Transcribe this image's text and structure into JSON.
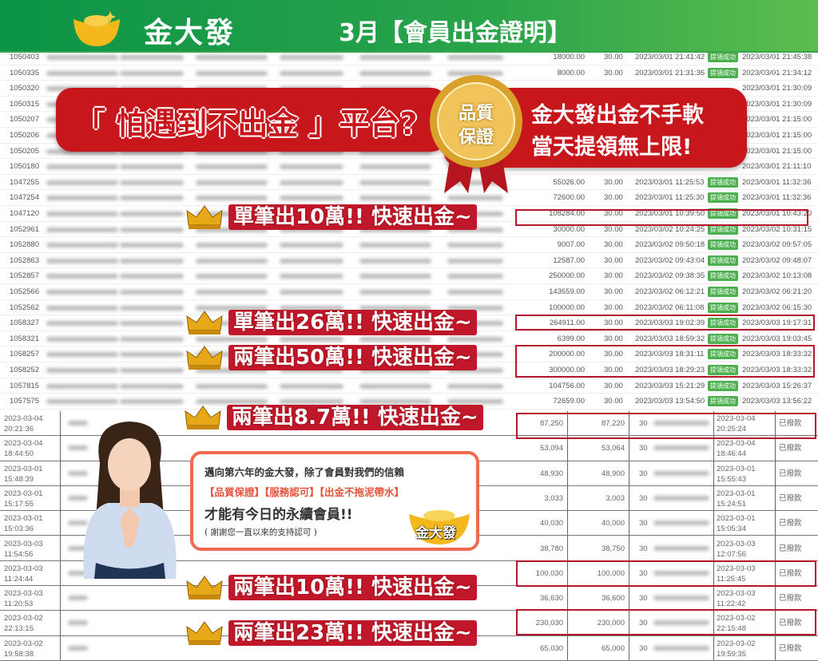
{
  "header": {
    "brand": "金大發",
    "title": "3月【會員出金證明】"
  },
  "top_table": {
    "status_label": "提領成功",
    "rows": [
      {
        "id": "1050403",
        "amount": "18000.00",
        "fee": "30.00",
        "request_time": "2023/03/01 21:41:42",
        "done_time": "2023/03/01 21:45:38"
      },
      {
        "id": "1050335",
        "amount": "8000.00",
        "fee": "30.00",
        "request_time": "2023/03/01 21:31:36",
        "done_time": "2023/03/01 21:34:12"
      },
      {
        "id": "1050320",
        "amount": "",
        "fee": "",
        "request_time": "",
        "done_time": "2023/03/01 21:30:09"
      },
      {
        "id": "1050315",
        "amount": "",
        "fee": "",
        "request_time": "",
        "done_time": "2023/03/01 21:30:09"
      },
      {
        "id": "1050207",
        "amount": "",
        "fee": "",
        "request_time": "",
        "done_time": "2023/03/01 21:15:00"
      },
      {
        "id": "1050206",
        "amount": "",
        "fee": "",
        "request_time": "",
        "done_time": "2023/03/01 21:15:00"
      },
      {
        "id": "1050205",
        "amount": "",
        "fee": "",
        "request_time": "",
        "done_time": "2023/03/01 21:15:00"
      },
      {
        "id": "1050180",
        "amount": "",
        "fee": "",
        "request_time": "",
        "done_time": "2023/03/01 21:11:10"
      },
      {
        "id": "1047255",
        "amount": "55026.00",
        "fee": "30.00",
        "request_time": "2023/03/01 11:25:53",
        "done_time": "2023/03/01 11:32:36"
      },
      {
        "id": "1047254",
        "amount": "72600.00",
        "fee": "30.00",
        "request_time": "2023/03/01 11:25:30",
        "done_time": "2023/03/01 11:32:36"
      },
      {
        "id": "1047120",
        "amount": "108284.00",
        "fee": "30.00",
        "request_time": "2023/03/01 10:39:50",
        "done_time": "2023/03/01 10:43:20"
      },
      {
        "id": "1052961",
        "amount": "30000.00",
        "fee": "30.00",
        "request_time": "2023/03/02 10:24:25",
        "done_time": "2023/03/02 10:31:15"
      },
      {
        "id": "1052880",
        "amount": "9007.00",
        "fee": "30.00",
        "request_time": "2023/03/02 09:50:18",
        "done_time": "2023/03/02 09:57:05"
      },
      {
        "id": "1052863",
        "amount": "12587.00",
        "fee": "30.00",
        "request_time": "2023/03/02 09:43:04",
        "done_time": "2023/03/02 09:48:07"
      },
      {
        "id": "1052857",
        "amount": "250000.00",
        "fee": "30.00",
        "request_time": "2023/03/02 09:38:35",
        "done_time": "2023/03/02 10:13:08"
      },
      {
        "id": "1052566",
        "amount": "143659.00",
        "fee": "30.00",
        "request_time": "2023/03/02 06:12:21",
        "done_time": "2023/03/02 06:21:20"
      },
      {
        "id": "1052562",
        "amount": "100000.00",
        "fee": "30.00",
        "request_time": "2023/03/02 06:11:08",
        "done_time": "2023/03/02 06:15:30"
      },
      {
        "id": "1058327",
        "amount": "264911.00",
        "fee": "30.00",
        "request_time": "2023/03/03 19:02:39",
        "done_time": "2023/03/03 19:17:31"
      },
      {
        "id": "1058321",
        "amount": "6399.00",
        "fee": "30.00",
        "request_time": "2023/03/03 18:59:32",
        "done_time": "2023/03/03 19:03:45"
      },
      {
        "id": "1058257",
        "amount": "200000.00",
        "fee": "30.00",
        "request_time": "2023/03/03 18:31:11",
        "done_time": "2023/03/03 18:33:32"
      },
      {
        "id": "1058252",
        "amount": "300000.00",
        "fee": "30.00",
        "request_time": "2023/03/03 18:29:23",
        "done_time": "2023/03/03 18:33:32"
      },
      {
        "id": "1057815",
        "amount": "104756.00",
        "fee": "30.00",
        "request_time": "2023/03/03 15:21:29",
        "done_time": "2023/03/03 15:26:37"
      },
      {
        "id": "1057575",
        "amount": "72659.00",
        "fee": "30.00",
        "request_time": "2023/03/03 13:54:50",
        "done_time": "2023/03/03 13:56:22"
      }
    ]
  },
  "bottom_table": {
    "status_label": "已撥款",
    "rows": [
      {
        "date": "2023-03-04",
        "time": "20:21:36",
        "amount": "87,250",
        "net": "87,220",
        "fee": "30",
        "done_date": "2023-03-04",
        "done_time": "20:25:24"
      },
      {
        "date": "2023-03-04",
        "time": "18:44:50",
        "amount": "53,094",
        "net": "53,064",
        "fee": "30",
        "done_date": "2023-03-04",
        "done_time": "18:46:44"
      },
      {
        "date": "2023-03-01",
        "time": "15:48:39",
        "amount": "48,930",
        "net": "48,900",
        "fee": "30",
        "done_date": "2023-03-01",
        "done_time": "15:55:43"
      },
      {
        "date": "2023-03-01",
        "time": "15:17:55",
        "amount": "3,033",
        "net": "3,003",
        "fee": "30",
        "done_date": "2023-03-01",
        "done_time": "15:24:51"
      },
      {
        "date": "2023-03-01",
        "time": "15:03:36",
        "amount": "40,030",
        "net": "40,000",
        "fee": "30",
        "done_date": "2023-03-01",
        "done_time": "15:05:34"
      },
      {
        "date": "2023-03-03",
        "time": "11:54:56",
        "amount": "38,780",
        "net": "38,750",
        "fee": "30",
        "done_date": "2023-03-03",
        "done_time": "12:07:56"
      },
      {
        "date": "2023-03-03",
        "time": "11:24:44",
        "amount": "100,030",
        "net": "100,000",
        "fee": "30",
        "done_date": "2023-03-03",
        "done_time": "11:25:45"
      },
      {
        "date": "2023-03-03",
        "time": "11:20:53",
        "amount": "36,630",
        "net": "36,600",
        "fee": "30",
        "done_date": "2023-03-03",
        "done_time": "11:22:42"
      },
      {
        "date": "2023-03-02",
        "time": "22:13:15",
        "amount": "230,030",
        "net": "230,000",
        "fee": "30",
        "done_date": "2023-03-02",
        "done_time": "22:15:48"
      },
      {
        "date": "2023-03-02",
        "time": "19:58:38",
        "amount": "65,030",
        "net": "65,000",
        "fee": "30",
        "done_date": "2023-03-02",
        "done_time": "19:59:35"
      }
    ]
  },
  "banner_left": "「 怕遇到不出金 」平台?",
  "seal": {
    "line1": "品質",
    "line2": "保證"
  },
  "banner_right": {
    "line1": "金大發出金不手軟",
    "line2": "當天提領無上限!"
  },
  "callouts": [
    "單筆出10萬!! 快速出金~",
    "單筆出26萬!! 快速出金~",
    "兩筆出50萬!! 快速出金~",
    "兩筆出8.7萬!! 快速出金~",
    "兩筆出10萬!! 快速出金~",
    "兩筆出23萬!! 快速出金~"
  ],
  "bubble": {
    "line1": "邁向第六年的金大發，除了會員對我們的信賴",
    "line2": "【品質保證】【服務認可】【出金不拖泥帶水】",
    "line3": "才能有今日的永續會員!!",
    "line4": "( 謝謝您一直以來的支持認可 )",
    "logo": "金大發"
  },
  "colors": {
    "header_green": "#0b9447",
    "banner_red": "#c8161d",
    "highlight_red": "#b5162b",
    "badge_green": "#4caf50",
    "bubble_border": "#ef6a50",
    "gold": "#f2b705"
  }
}
